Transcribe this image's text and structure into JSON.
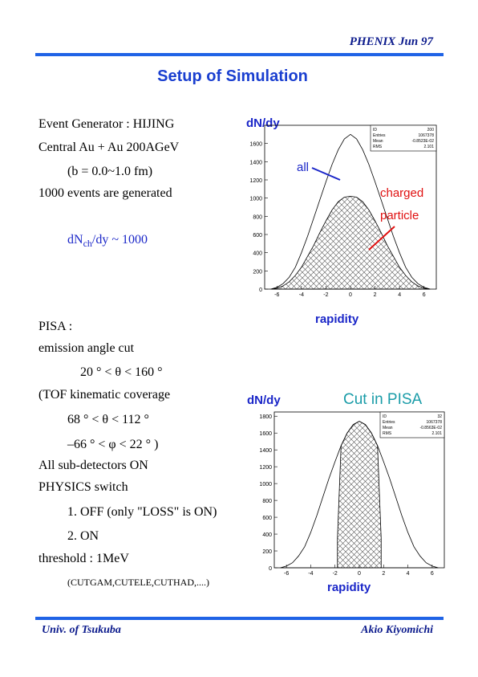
{
  "header": {
    "right": "PHENIX  Jun 97"
  },
  "title": "Setup of Simulation",
  "left_top": {
    "line1": "Event Generator : HIJING",
    "line2": "Central Au + Au 200AGeV",
    "line3": "(b = 0.0~1.0 fm)",
    "line4": "1000 events are generated",
    "dn_pre": "dN",
    "dn_sub": "ch",
    "dn_post": "/dy ~ 1000"
  },
  "left_bottom": {
    "l1": "PISA :",
    "l2": "emission angle cut",
    "l3": "20 ° < θ < 160 °",
    "l4": "(TOF kinematic coverage",
    "l5": "68 ° < θ < 112 °",
    "l6": "–66 ° < φ < 22 °  )",
    "l7": "All sub-detectors  ON",
    "l8": "PHYSICS switch",
    "l9": "1. OFF (only \"LOSS\" is ON)",
    "l10": "2. ON",
    "l11": "threshold : 1MeV",
    "l12": "(CUTGAM,CUTELE,CUTHAD,....)"
  },
  "annotations": {
    "all": "all",
    "charged": "charged",
    "particle": "particle",
    "cut_in_pisa": "Cut in PISA"
  },
  "footer": {
    "left": "Univ. of Tsukuba",
    "right": "Akio Kiyomichi"
  },
  "chart_data": [
    {
      "type": "area",
      "title": "dN/dy",
      "xlabel": "rapidity",
      "ylabel": "",
      "xlim": [
        -7,
        7
      ],
      "ylim": [
        0,
        1800
      ],
      "xticks": [
        -6,
        -4,
        -2,
        0,
        2,
        4,
        6
      ],
      "yticks": [
        0,
        200,
        400,
        600,
        800,
        1000,
        1200,
        1400,
        1600
      ],
      "grid": false,
      "stats_box": [
        [
          "ID",
          "200"
        ],
        [
          "Entries",
          "1067378"
        ],
        [
          "Mean",
          "-0.8523E-02"
        ],
        [
          "RMS",
          "2.101"
        ]
      ],
      "series": [
        {
          "name": "all",
          "x": [
            -6.5,
            -6,
            -5.5,
            -5,
            -4.5,
            -4,
            -3.5,
            -3,
            -2.5,
            -2,
            -1.5,
            -1,
            -0.5,
            0,
            0.5,
            1,
            1.5,
            2,
            2.5,
            3,
            3.5,
            4,
            4.5,
            5,
            5.5,
            6,
            6.5
          ],
          "values": [
            0,
            20,
            60,
            130,
            240,
            400,
            580,
            780,
            980,
            1180,
            1370,
            1530,
            1650,
            1700,
            1650,
            1530,
            1370,
            1180,
            980,
            780,
            580,
            400,
            240,
            130,
            60,
            20,
            0
          ],
          "color": "#000000"
        },
        {
          "name": "charged particle",
          "x": [
            -6.5,
            -6,
            -5.5,
            -5,
            -4.5,
            -4,
            -3.5,
            -3,
            -2.5,
            -2,
            -1.5,
            -1,
            -0.5,
            0,
            0.5,
            1,
            1.5,
            2,
            2.5,
            3,
            3.5,
            4,
            4.5,
            5,
            5.5,
            6,
            6.5
          ],
          "values": [
            0,
            10,
            35,
            80,
            150,
            240,
            360,
            480,
            620,
            750,
            870,
            960,
            1010,
            1020,
            1010,
            960,
            870,
            750,
            620,
            480,
            360,
            240,
            150,
            80,
            35,
            10,
            0
          ],
          "color": "#000000"
        }
      ]
    },
    {
      "type": "area",
      "title": "dN/dy",
      "xlabel": "rapidity",
      "ylabel": "",
      "xlim": [
        -7,
        7
      ],
      "ylim": [
        0,
        1850
      ],
      "xticks": [
        -6,
        -4,
        -2,
        0,
        2,
        4,
        6
      ],
      "yticks": [
        0,
        200,
        400,
        600,
        800,
        1000,
        1200,
        1400,
        1600,
        1800
      ],
      "grid": false,
      "stats_box": [
        [
          "ID",
          "32"
        ],
        [
          "Entries",
          "1067378"
        ],
        [
          "Mean",
          "-0.8563E-02"
        ],
        [
          "RMS",
          "2.101"
        ]
      ],
      "series": [
        {
          "name": "",
          "x": [
            -6.5,
            -6,
            -5.5,
            -5,
            -4.5,
            -4,
            -3.5,
            -3,
            -2.5,
            -2,
            -1.5,
            -1,
            -0.5,
            0,
            0.5,
            1,
            1.5,
            2,
            2.5,
            3,
            3.5,
            4,
            4.5,
            5,
            5.5,
            6,
            6.5
          ],
          "values": [
            0,
            20,
            60,
            140,
            250,
            420,
            620,
            840,
            1060,
            1260,
            1450,
            1600,
            1700,
            1740,
            1700,
            1600,
            1450,
            1260,
            1060,
            840,
            620,
            420,
            250,
            140,
            60,
            20,
            0
          ],
          "color": "#000000"
        },
        {
          "name": "",
          "x": [
            -1.8,
            -1.5,
            -1,
            -0.5,
            0,
            0.5,
            1,
            1.5,
            1.8
          ],
          "values": [
            350,
            1450,
            1600,
            1700,
            1740,
            1700,
            1600,
            1450,
            350
          ],
          "color": "#000000"
        }
      ]
    }
  ]
}
